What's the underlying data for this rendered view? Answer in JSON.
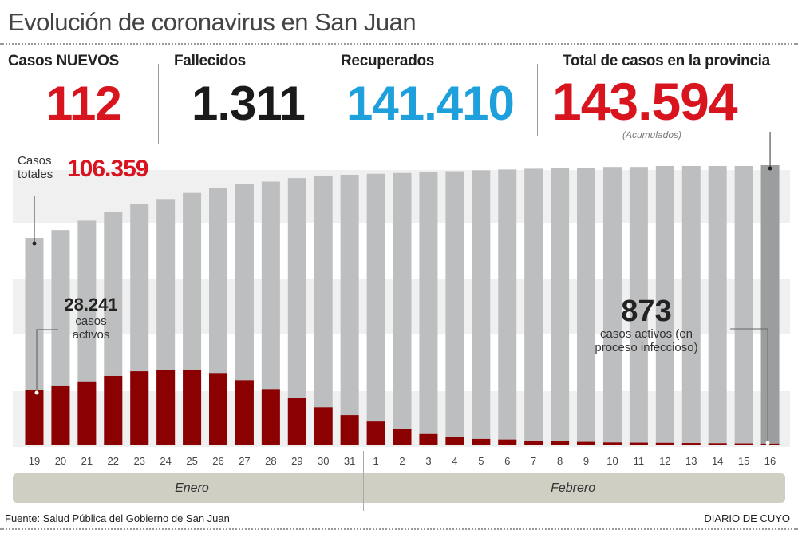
{
  "header": {
    "title": "Evolución de coronavirus en San Juan"
  },
  "stats": {
    "new_cases": {
      "label": "Casos NUEVOS",
      "value": "112",
      "color": "#d8141f"
    },
    "deaths": {
      "label": "Fallecidos",
      "value": "1.311",
      "color": "#1a1a1a"
    },
    "recovered": {
      "label": "Recuperados",
      "value": "141.410",
      "color": "#1ea0dc"
    },
    "total": {
      "label": "Total de casos en la provincia",
      "value": "143.594",
      "note": "(Acumulados)",
      "color": "#d8141f"
    }
  },
  "annotations": {
    "start_total": {
      "label_line1": "Casos",
      "label_line2": "totales",
      "value": "106.359"
    },
    "start_active": {
      "value": "28.241",
      "line1": "casos",
      "line2": "activos"
    },
    "end_active": {
      "value": "873",
      "line1": "casos activos (en",
      "line2": "proceso infeccioso)"
    }
  },
  "chart_data": {
    "type": "bar",
    "categories": [
      "19",
      "20",
      "21",
      "22",
      "23",
      "24",
      "25",
      "26",
      "27",
      "28",
      "29",
      "30",
      "31",
      "1",
      "2",
      "3",
      "4",
      "5",
      "6",
      "7",
      "8",
      "9",
      "10",
      "11",
      "12",
      "13",
      "14",
      "15",
      "16"
    ],
    "months": [
      {
        "name": "Enero",
        "count": 13
      },
      {
        "name": "Febrero",
        "count": 16
      }
    ],
    "series": [
      {
        "color": "#bdbec0",
        "values": [
          106359,
          110400,
          115200,
          119700,
          123700,
          126300,
          129400,
          132100,
          133900,
          135200,
          137000,
          138300,
          138700,
          139200,
          139600,
          140100,
          140500,
          141000,
          141400,
          141800,
          142300,
          142300,
          142700,
          142700,
          143200,
          143200,
          143200,
          143200,
          143594
        ]
      },
      {
        "color": "#8b0000",
        "values": [
          28241,
          30700,
          32800,
          35600,
          38000,
          38600,
          38600,
          37100,
          33400,
          28900,
          24300,
          19500,
          15500,
          12200,
          8500,
          5800,
          4300,
          3300,
          3000,
          2400,
          2100,
          1800,
          1500,
          1400,
          1300,
          1200,
          1100,
          1000,
          873
        ]
      }
    ],
    "highlight_color": "#9c9d9f",
    "grid": "bands",
    "ylim": [
      0,
      143594
    ]
  },
  "footer": {
    "source": "Fuente: Salud Pública del Gobierno de San Juan",
    "brand": "DIARIO DE CUYO"
  }
}
